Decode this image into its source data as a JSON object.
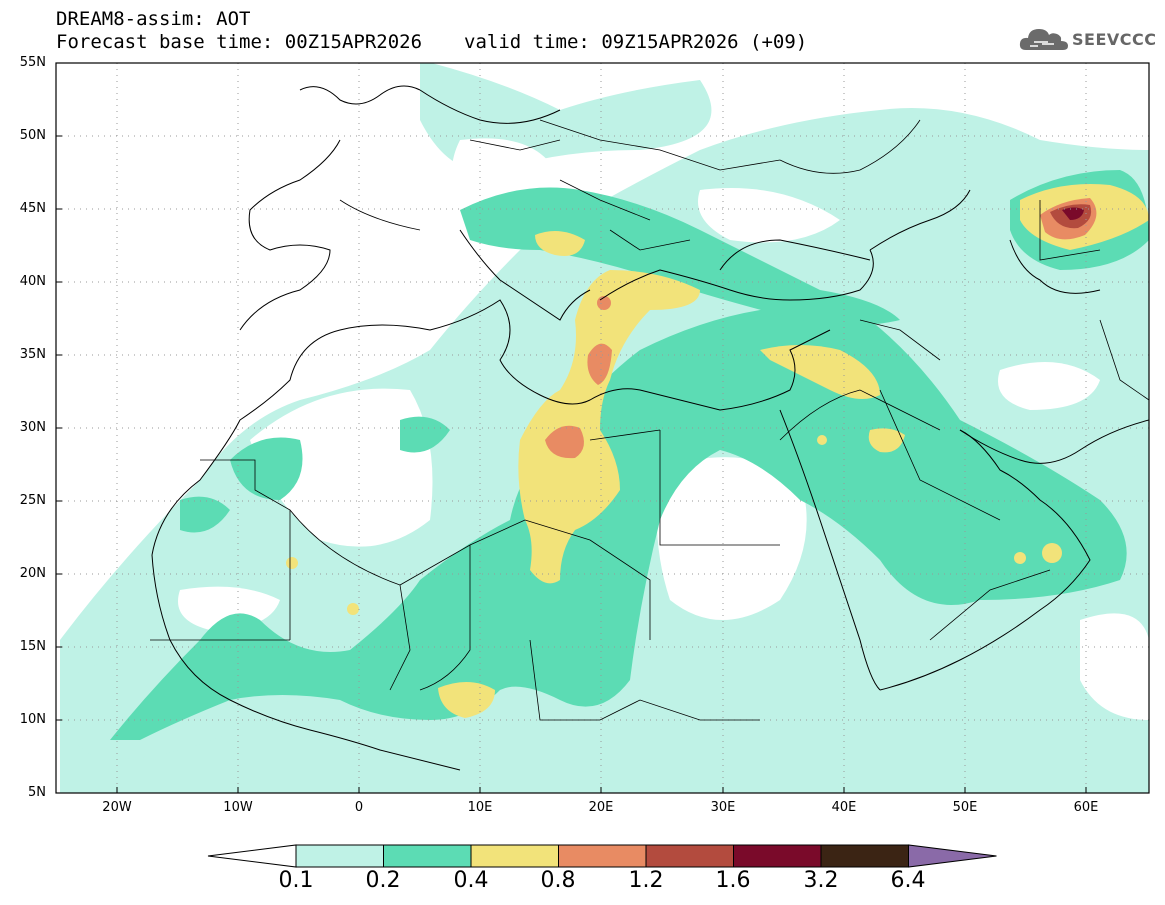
{
  "header": {
    "model_title": "DREAM8-assim: AOT",
    "base_time": "Forecast base time: 00Z15APR2026",
    "valid_time": "valid time: 09Z15APR2026 (+09)"
  },
  "logo": {
    "icon": "cloud-logo-icon",
    "text": "SEEVCCC"
  },
  "map": {
    "lat_labels": [
      "55N",
      "50N",
      "45N",
      "40N",
      "35N",
      "30N",
      "25N",
      "20N",
      "15N",
      "10N",
      "5N"
    ],
    "lon_labels": [
      "20W",
      "10W",
      "0",
      "10E",
      "20E",
      "30E",
      "40E",
      "50E",
      "60E"
    ],
    "lat_range": [
      5,
      55
    ],
    "lon_range": [
      -25,
      65
    ],
    "grid": true
  },
  "colorbar": {
    "labels": [
      "0.1",
      "0.2",
      "0.4",
      "0.8",
      "1.2",
      "1.6",
      "3.2",
      "6.4"
    ],
    "colors": [
      "#ffffff",
      "#bff2e6",
      "#5cdcb4",
      "#f2e37a",
      "#e88b63",
      "#b34b3e",
      "#7a0a2a",
      "#3b2414",
      "#8a6aa8"
    ]
  }
}
